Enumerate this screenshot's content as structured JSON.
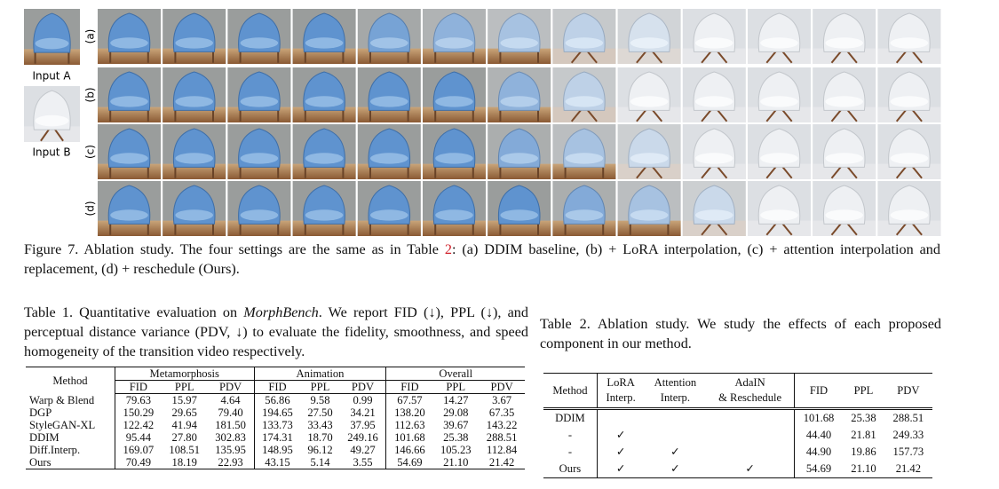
{
  "figure": {
    "input_labels": [
      "Input A",
      "Input B"
    ],
    "row_labels": [
      "(a)",
      "(b)",
      "(c)",
      "(d)"
    ],
    "caption_before": "Figure 7. Ablation study. The four settings are the same as in Table ",
    "caption_ref": "2",
    "caption_after": ": (a) DDIM baseline, (b) + LoRA interpolation, (c) + attention interpolation and replacement, (d) + reschedule (Ours)."
  },
  "table1": {
    "caption_before": "Table 1. Quantitative evaluation on ",
    "caption_italic": "MorphBench",
    "caption_after": ". We report FID (↓), PPL (↓), and perceptual distance variance (PDV, ↓) to evaluate the fidelity, smoothness, and speed homogeneity of the transition video respectively.",
    "method_header": "Method",
    "groups": [
      "Metamorphosis",
      "Animation",
      "Overall"
    ],
    "metrics": [
      "FID",
      "PPL",
      "PDV"
    ],
    "rows": [
      [
        "Warp & Blend",
        "79.63",
        "15.97",
        "4.64",
        "56.86",
        "9.58",
        "0.99",
        "67.57",
        "14.27",
        "3.67"
      ],
      [
        "DGP",
        "150.29",
        "29.65",
        "79.40",
        "194.65",
        "27.50",
        "34.21",
        "138.20",
        "29.08",
        "67.35"
      ],
      [
        "StyleGAN-XL",
        "122.42",
        "41.94",
        "181.50",
        "133.73",
        "33.43",
        "37.95",
        "112.63",
        "39.67",
        "143.22"
      ],
      [
        "DDIM",
        "95.44",
        "27.80",
        "302.83",
        "174.31",
        "18.70",
        "249.16",
        "101.68",
        "25.38",
        "288.51"
      ],
      [
        "Diff.Interp.",
        "169.07",
        "108.51",
        "135.95",
        "148.95",
        "96.12",
        "49.27",
        "146.66",
        "105.23",
        "112.84"
      ],
      [
        "Ours",
        "70.49",
        "18.19",
        "22.93",
        "43.15",
        "5.14",
        "3.55",
        "54.69",
        "21.10",
        "21.42"
      ]
    ]
  },
  "table2": {
    "caption": "Table 2. Ablation study. We study the effects of each proposed component in our method.",
    "header": [
      "Method",
      [
        "LoRA",
        "Interp."
      ],
      [
        "Attention",
        "Interp."
      ],
      [
        "AdaIN",
        "& Reschedule"
      ],
      "FID",
      "PPL",
      "PDV"
    ],
    "rows": [
      [
        "DDIM",
        null,
        null,
        null,
        "101.68",
        "25.38",
        "288.51"
      ],
      [
        "-",
        "✓",
        null,
        null,
        "44.40",
        "21.81",
        "249.33"
      ],
      [
        "-",
        "✓",
        "✓",
        null,
        "44.90",
        "19.86",
        "157.73"
      ],
      [
        "Ours",
        "✓",
        "✓",
        "✓",
        "54.69",
        "21.10",
        "21.42"
      ]
    ]
  }
}
